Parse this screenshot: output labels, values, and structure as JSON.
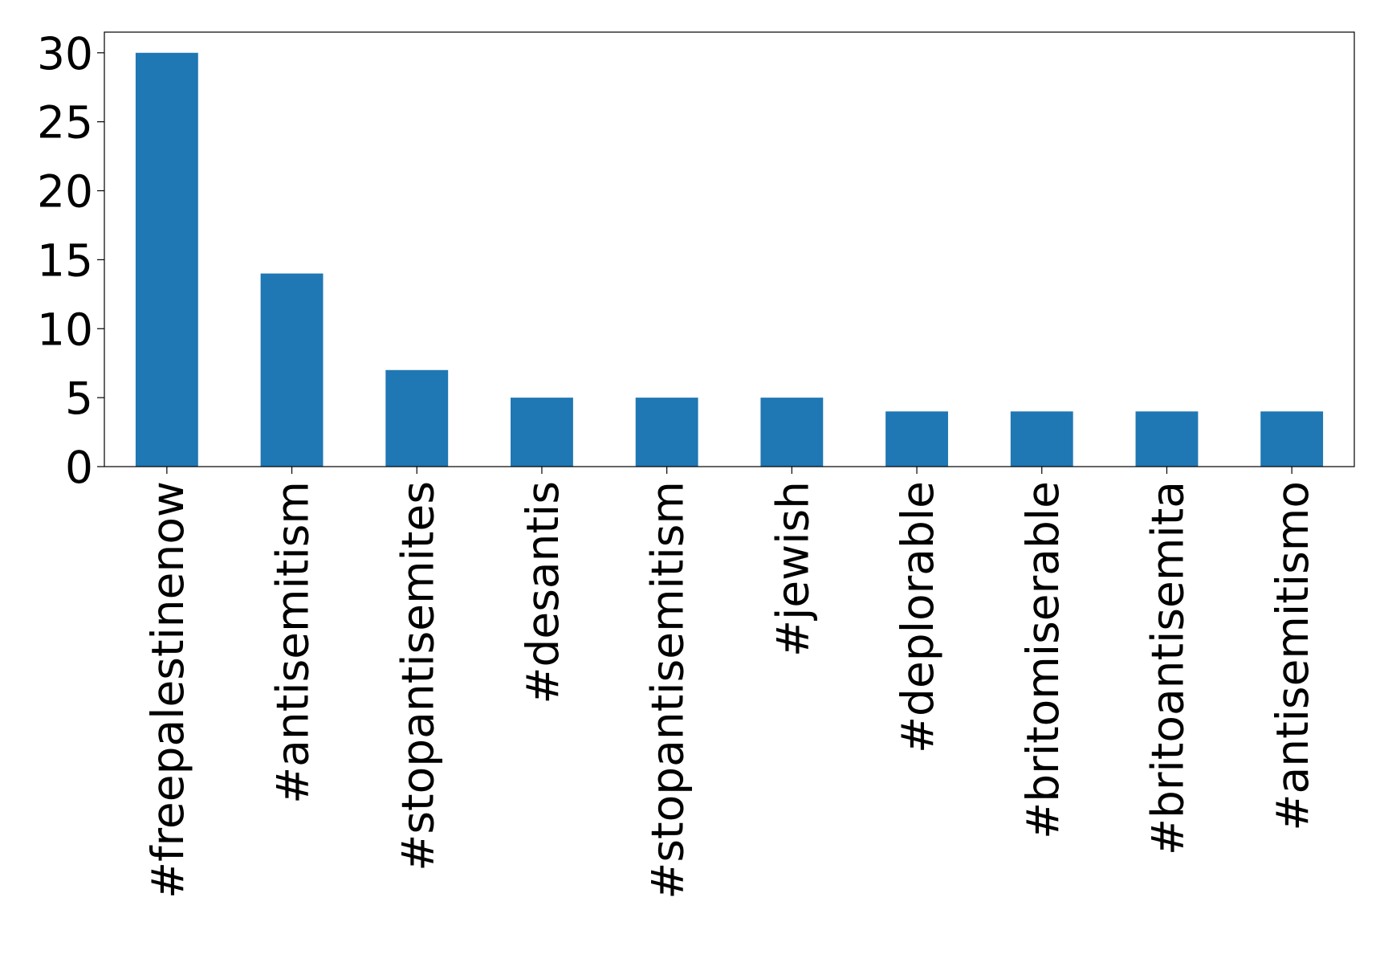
{
  "chart_data": {
    "type": "bar",
    "categories": [
      "#freepalestinenow",
      "#antisemitism",
      "#stopantisemites",
      "#desantis",
      "#stopantisemitism",
      "#jewish",
      "#deplorable",
      "#britomiserable",
      "#britoantisemita",
      "#antisemitismo"
    ],
    "values": [
      30,
      14,
      7,
      5,
      5,
      5,
      4,
      4,
      4,
      4
    ],
    "color": "#1f77b4",
    "ylim": [
      0,
      31.5
    ],
    "yticks": [
      0,
      5,
      10,
      15,
      20,
      25,
      30
    ],
    "grid": false
  }
}
